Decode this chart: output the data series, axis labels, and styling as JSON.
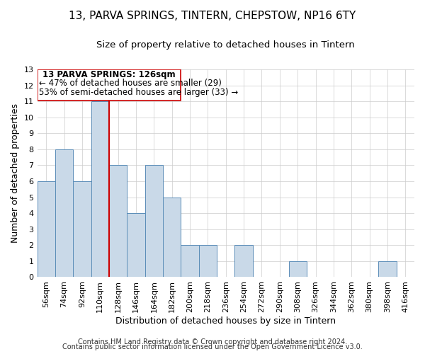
{
  "title": "13, PARVA SPRINGS, TINTERN, CHEPSTOW, NP16 6TY",
  "subtitle": "Size of property relative to detached houses in Tintern",
  "xlabel": "Distribution of detached houses by size in Tintern",
  "ylabel": "Number of detached properties",
  "bin_labels": [
    "56sqm",
    "74sqm",
    "92sqm",
    "110sqm",
    "128sqm",
    "146sqm",
    "164sqm",
    "182sqm",
    "200sqm",
    "218sqm",
    "236sqm",
    "254sqm",
    "272sqm",
    "290sqm",
    "308sqm",
    "326sqm",
    "344sqm",
    "362sqm",
    "380sqm",
    "398sqm",
    "416sqm"
  ],
  "bin_values": [
    6,
    8,
    6,
    11,
    7,
    4,
    7,
    5,
    2,
    2,
    0,
    2,
    0,
    0,
    1,
    0,
    0,
    0,
    0,
    1,
    0
  ],
  "bar_color": "#c9d9e8",
  "bar_edge_color": "#5b8db8",
  "property_line_color": "#cc0000",
  "annotation_box_color": "#cc0000",
  "annotation_text_line1": "13 PARVA SPRINGS: 126sqm",
  "annotation_text_line2": "← 47% of detached houses are smaller (29)",
  "annotation_text_line3": "53% of semi-detached houses are larger (33) →",
  "ylim": [
    0,
    13
  ],
  "yticks": [
    0,
    1,
    2,
    3,
    4,
    5,
    6,
    7,
    8,
    9,
    10,
    11,
    12,
    13
  ],
  "footer_line1": "Contains HM Land Registry data © Crown copyright and database right 2024.",
  "footer_line2": "Contains public sector information licensed under the Open Government Licence v3.0.",
  "background_color": "#ffffff",
  "grid_color": "#cccccc",
  "title_fontsize": 11,
  "subtitle_fontsize": 9.5,
  "axis_label_fontsize": 9,
  "tick_fontsize": 8,
  "annotation_fontsize": 8.5,
  "footer_fontsize": 7
}
